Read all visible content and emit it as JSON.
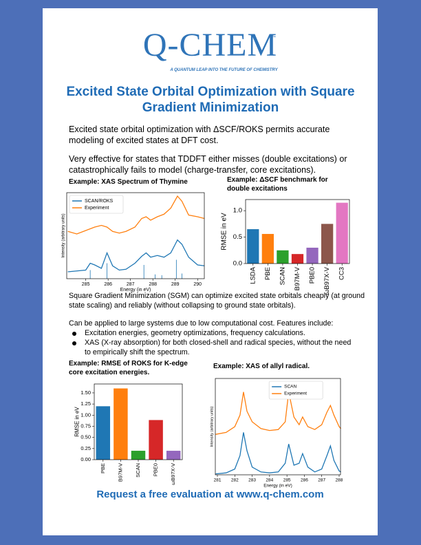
{
  "header": {
    "logo": "Q-CHEM",
    "trademark": "™",
    "tagline": "A QUANTUM LEAP INTO THE FUTURE OF CHEMISTRY"
  },
  "title": "Excited State Orbital Optimization with Square Gradient Minimization",
  "paragraphs": [
    "Excited state orbital optimization with ΔSCF/ROKS permits accurate modeling of excited states at DFT cost.",
    "Very effective for states that TDDFT either misses (double excitations) or catastrophically fails to model (charge-transfer, core excitations).",
    "Square Gradient Minimization (SGM) can optimize excited state orbitals cheaply (at ground state scaling) and reliably (without collapsing to ground state orbitals).",
    "Can be applied to large systems due to low computational cost. Features include:"
  ],
  "bullets": [
    "Excitation energies, geometry optimizations, frequency calculations.",
    "XAS (X-ray absorption) for both closed-shell and radical species, without the need to empirically shift the spectrum."
  ],
  "footer": "Request a free evaluation at www.q-chem.com",
  "chart_data": [
    {
      "type": "line",
      "title": "Example: XAS Spectrum of Thymine",
      "x_label": "Energy (in eV)",
      "y_label": "Intensity (arbitrary units)",
      "x": [
        284.2,
        284.6,
        285.0,
        285.2,
        285.4,
        285.7,
        285.95,
        286.2,
        286.5,
        286.8,
        287.2,
        287.5,
        287.7,
        287.9,
        288.2,
        288.5,
        288.8,
        289.1,
        289.3,
        289.6,
        290.0,
        290.3
      ],
      "series": [
        {
          "name": "SCAN/ROKS",
          "color": "#1f77b4",
          "values": [
            0.08,
            0.09,
            0.1,
            0.18,
            0.16,
            0.12,
            0.3,
            0.15,
            0.1,
            0.11,
            0.18,
            0.26,
            0.3,
            0.25,
            0.27,
            0.25,
            0.3,
            0.45,
            0.4,
            0.25,
            0.16,
            0.15
          ]
        },
        {
          "name": "Experiment",
          "color": "#ff7f0e",
          "values": [
            0.55,
            0.52,
            0.56,
            0.58,
            0.6,
            0.62,
            0.6,
            0.55,
            0.53,
            0.55,
            0.6,
            0.7,
            0.72,
            0.68,
            0.72,
            0.75,
            0.82,
            0.96,
            0.9,
            0.74,
            0.72,
            0.7
          ]
        }
      ],
      "sticks": {
        "color": "#1f77b4",
        "x": [
          285.2,
          285.95,
          287.6,
          288.1,
          288.4,
          289.05,
          289.3
        ],
        "values": [
          0.1,
          0.18,
          0.16,
          0.05,
          0.04,
          0.22,
          0.06
        ]
      },
      "xlim": [
        284.15,
        290.3
      ],
      "ylim": [
        0,
        1
      ],
      "xticks": [
        285,
        286,
        287,
        288,
        289,
        290
      ],
      "legend": "upper left"
    },
    {
      "type": "bar",
      "title": "Example: ΔSCF benchmark for double excitations",
      "y_label": "RMSE in eV",
      "categories": [
        "LSDA",
        "PBE",
        "SCAN",
        "B97M-V",
        "PBE0",
        "ωB97X-V",
        "CC3"
      ],
      "values": [
        0.65,
        0.56,
        0.25,
        0.18,
        0.3,
        0.75,
        1.15
      ],
      "colors": [
        "#1f77b4",
        "#ff7f0e",
        "#2ca02c",
        "#d62728",
        "#9467bd",
        "#8c564b",
        "#e377c2"
      ],
      "ylim": [
        0,
        1.21
      ],
      "yticks": [
        {
          "value": 0,
          "label": "0.0"
        },
        {
          "value": 0.5,
          "label": "0.5"
        },
        {
          "value": 1,
          "label": "1.0"
        }
      ]
    },
    {
      "type": "bar",
      "title": "Example: RMSE of ROKS for K-edge core excitation energies.",
      "y_label": "RMSE in eV",
      "categories": [
        "PBE",
        "B97M-V",
        "SCAN",
        "PBE0",
        "ωB97X-V"
      ],
      "values": [
        1.2,
        1.6,
        0.2,
        0.89,
        0.2
      ],
      "colors": [
        "#1f77b4",
        "#ff7f0e",
        "#2ca02c",
        "#d62728",
        "#9467bd"
      ],
      "ylim": [
        0,
        1.7
      ],
      "yticks": [
        {
          "value": 0,
          "label": "0.00"
        },
        {
          "value": 0.25,
          "label": "0.25"
        },
        {
          "value": 0.5,
          "label": "0.50"
        },
        {
          "value": 0.75,
          "label": "0.75"
        },
        {
          "value": 1,
          "label": "1.00"
        },
        {
          "value": 1.25,
          "label": "1.25"
        },
        {
          "value": 1.5,
          "label": "1.50"
        }
      ]
    },
    {
      "type": "line",
      "title": "Example: XAS of allyl radical.",
      "x_label": "Energy (in eV)",
      "y_label": "Intensity (arbitrary units)",
      "x": [
        280.9,
        281.5,
        282.0,
        282.3,
        282.5,
        282.7,
        283.0,
        283.5,
        284.0,
        284.5,
        284.9,
        285.1,
        285.4,
        285.7,
        285.9,
        286.2,
        286.6,
        287.0,
        287.3,
        287.5,
        287.7,
        288.0,
        288.1
      ],
      "series": [
        {
          "name": "SCAN",
          "color": "#1f77b4",
          "values": [
            0.01,
            0.02,
            0.06,
            0.2,
            0.44,
            0.25,
            0.08,
            0.03,
            0.02,
            0.03,
            0.12,
            0.32,
            0.1,
            0.12,
            0.22,
            0.08,
            0.03,
            0.06,
            0.2,
            0.3,
            0.15,
            0.04,
            0.03
          ]
        },
        {
          "name": "Experiment",
          "color": "#ff7f0e",
          "values": [
            0.42,
            0.44,
            0.5,
            0.62,
            0.86,
            0.66,
            0.55,
            0.48,
            0.46,
            0.47,
            0.55,
            0.86,
            0.6,
            0.52,
            0.6,
            0.5,
            0.47,
            0.52,
            0.65,
            0.72,
            0.62,
            0.5,
            0.48
          ]
        }
      ],
      "xlim": [
        280.88,
        288.08
      ],
      "ylim": [
        0,
        1
      ],
      "xticks": [
        281,
        282,
        283,
        284,
        285,
        286,
        287,
        288
      ],
      "legend": "upper right"
    }
  ]
}
